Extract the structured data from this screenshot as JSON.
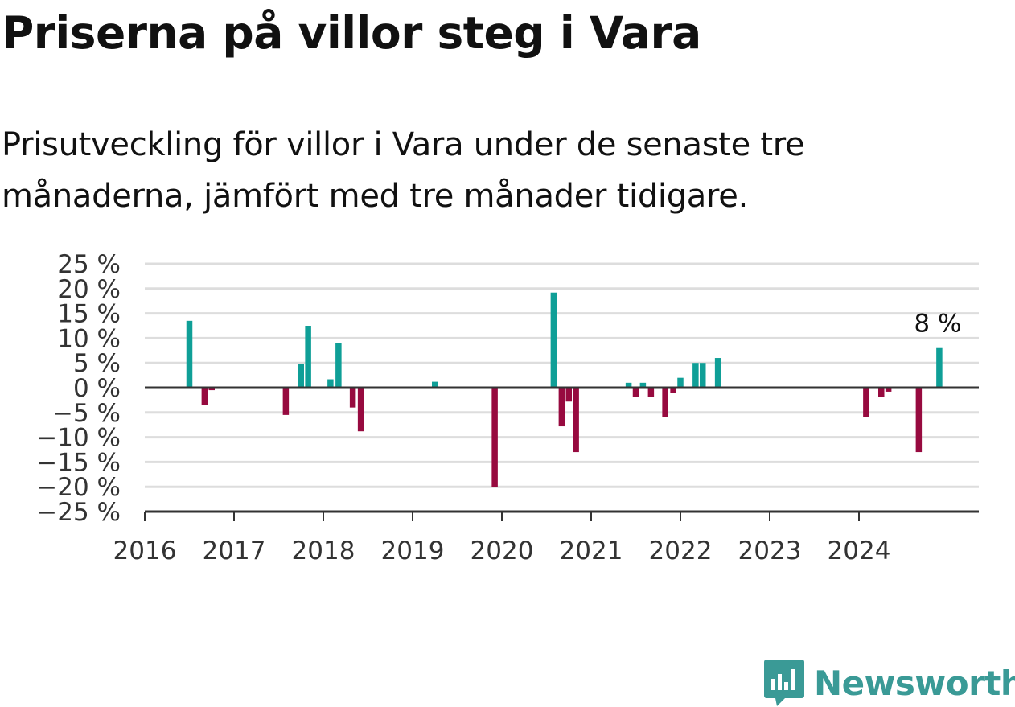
{
  "title": "Priserna på villor steg i Vara",
  "subtitle": "Prisutveckling för villor i Vara under de senaste tre månaderna, jämfört med tre månader tidigare.",
  "brand": "Newsworthy",
  "colors": {
    "positive": "#0f9f97",
    "negative": "#970a3f",
    "grid": "#dddddd",
    "axis": "#333333",
    "brand": "#3a9a96"
  },
  "chart_data": {
    "type": "bar",
    "ylim": [
      -25,
      25
    ],
    "yticks": [
      25,
      20,
      15,
      10,
      5,
      0,
      -5,
      -10,
      -15,
      -20,
      -25
    ],
    "ytick_labels": [
      "25 %",
      "20 %",
      "15 %",
      "10 %",
      "5 %",
      "0 %",
      "−5 %",
      "−10 %",
      "−15 %",
      "−20 %",
      "−25 %"
    ],
    "xlim": [
      2016,
      2025.2
    ],
    "xtick_labels": [
      "2016",
      "2017",
      "2018",
      "2019",
      "2020",
      "2021",
      "2022",
      "2023",
      "2024"
    ],
    "grid": true,
    "annotation": {
      "text": "8 %",
      "x": 2024.9,
      "value": 8
    },
    "bars": [
      {
        "x": 2016.5,
        "value": 13.5
      },
      {
        "x": 2016.67,
        "value": -3.5
      },
      {
        "x": 2016.75,
        "value": -0.5
      },
      {
        "x": 2017.58,
        "value": -5.5
      },
      {
        "x": 2017.75,
        "value": 4.8
      },
      {
        "x": 2017.83,
        "value": 12.5
      },
      {
        "x": 2018.08,
        "value": 1.7
      },
      {
        "x": 2018.17,
        "value": 9.0
      },
      {
        "x": 2018.33,
        "value": -4.0
      },
      {
        "x": 2018.42,
        "value": -8.8
      },
      {
        "x": 2019.25,
        "value": 1.2
      },
      {
        "x": 2019.92,
        "value": -20.0
      },
      {
        "x": 2020.58,
        "value": 19.2
      },
      {
        "x": 2020.67,
        "value": -7.8
      },
      {
        "x": 2020.75,
        "value": -2.8
      },
      {
        "x": 2020.83,
        "value": -13.0
      },
      {
        "x": 2021.42,
        "value": 1.0
      },
      {
        "x": 2021.5,
        "value": -1.8
      },
      {
        "x": 2021.58,
        "value": 1.0
      },
      {
        "x": 2021.67,
        "value": -1.8
      },
      {
        "x": 2021.83,
        "value": -6.0
      },
      {
        "x": 2021.92,
        "value": -1.0
      },
      {
        "x": 2022.0,
        "value": 2.0
      },
      {
        "x": 2022.17,
        "value": 5.0
      },
      {
        "x": 2022.25,
        "value": 5.0
      },
      {
        "x": 2022.42,
        "value": 6.0
      },
      {
        "x": 2024.08,
        "value": -6.0
      },
      {
        "x": 2024.25,
        "value": -1.8
      },
      {
        "x": 2024.33,
        "value": -0.8
      },
      {
        "x": 2024.67,
        "value": -13.0
      },
      {
        "x": 2024.9,
        "value": 8.0
      }
    ]
  }
}
